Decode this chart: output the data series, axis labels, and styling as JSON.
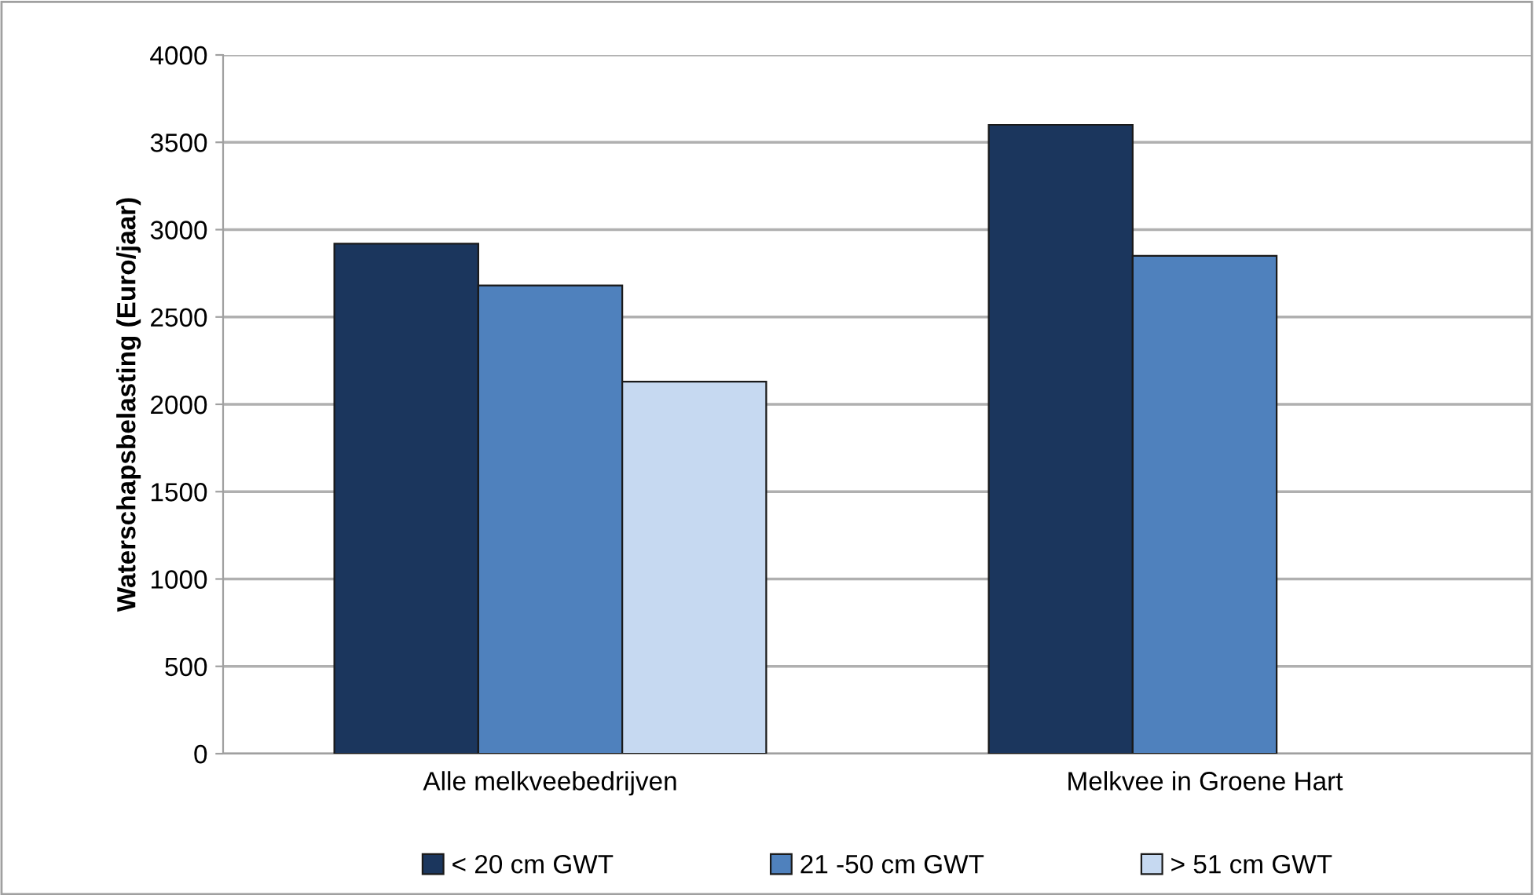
{
  "chart_data": {
    "type": "bar",
    "ylabel": "Waterschapsbelasting (Euro/jaar)",
    "categories": [
      "Alle melkveebedrijven",
      "Melkvee in Groene Hart"
    ],
    "series": [
      {
        "name": "< 20 cm GWT",
        "color": "#1b365d",
        "values": [
          2920,
          3600
        ]
      },
      {
        "name": "21 -50 cm GWT",
        "color": "#4f81bd",
        "values": [
          2680,
          2850
        ]
      },
      {
        "name": "> 51 cm GWT",
        "color": "#c6d9f1",
        "values": [
          2130,
          null
        ]
      }
    ],
    "ylim": [
      0,
      4000
    ],
    "yticks": [
      0,
      500,
      1000,
      1500,
      2000,
      2500,
      3000,
      3500,
      4000
    ],
    "grid": "y",
    "legend": "bottom"
  }
}
